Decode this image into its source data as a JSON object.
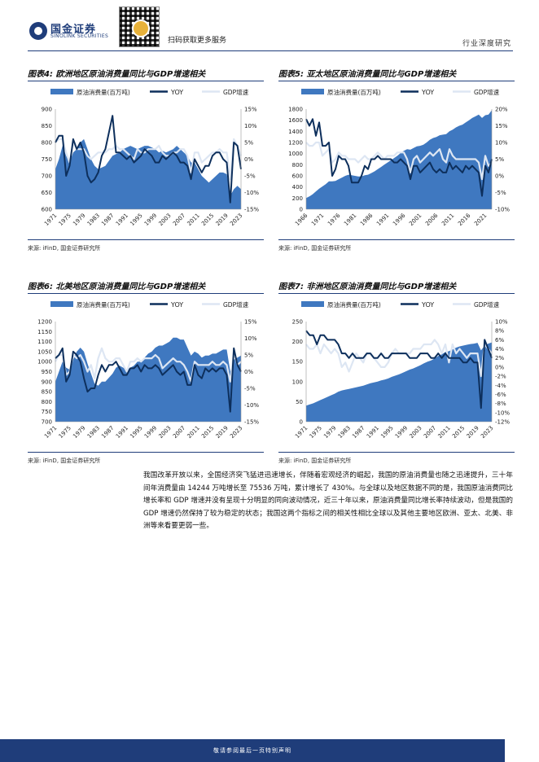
{
  "header": {
    "logo_cn": "国金证券",
    "logo_en": "SINOLINK SECURITIES",
    "scan_text": "扫码获取更多服务",
    "report_type": "行业深度研究"
  },
  "colors": {
    "area": "#3f78c0",
    "yoy": "#0d2f5c",
    "gdp": "#dde6f3",
    "brand": "#1f3d7a"
  },
  "legend": {
    "area": "原油消费量(百万吨)",
    "yoy": "YOY",
    "gdp": "GDP增速"
  },
  "figures": [
    {
      "title": "图表4: 欧洲地区原油消费量同比与GDP增速相关",
      "source": "来源: iFinD, 国金证券研究所",
      "chart_data": {
        "type": "area",
        "x_ticks": [
          "1971",
          "1975",
          "1979",
          "1983",
          "1987",
          "1991",
          "1995",
          "1999",
          "2003",
          "2007",
          "2011",
          "2015",
          "2019",
          "2023"
        ],
        "years": [
          1971,
          1972,
          1973,
          1974,
          1975,
          1976,
          1977,
          1978,
          1979,
          1980,
          1981,
          1982,
          1983,
          1984,
          1985,
          1986,
          1987,
          1988,
          1989,
          1990,
          1991,
          1992,
          1993,
          1994,
          1995,
          1996,
          1997,
          1998,
          1999,
          2000,
          2001,
          2002,
          2003,
          2004,
          2005,
          2006,
          2007,
          2008,
          2009,
          2010,
          2011,
          2012,
          2013,
          2014,
          2015,
          2016,
          2017,
          2018,
          2019,
          2020,
          2021,
          2022,
          2023
        ],
        "y_left": {
          "min": 600,
          "max": 900,
          "ticks": [
            "900",
            "850",
            "800",
            "750",
            "700",
            "650",
            "600"
          ]
        },
        "y_right": {
          "min": -15,
          "max": 15,
          "ticks": [
            "15%",
            "10%",
            "5%",
            "0%",
            "-5%",
            "-10%",
            "-15%"
          ]
        },
        "consumption": [
          720,
          750,
          790,
          760,
          740,
          770,
          780,
          800,
          810,
          780,
          750,
          730,
          720,
          725,
          730,
          745,
          760,
          765,
          770,
          780,
          785,
          790,
          785,
          780,
          785,
          790,
          790,
          785,
          780,
          770,
          775,
          770,
          775,
          780,
          790,
          780,
          770,
          760,
          740,
          740,
          720,
          700,
          690,
          680,
          690,
          700,
          710,
          710,
          705,
          640,
          660,
          670,
          660
        ],
        "yoy": [
          5,
          7,
          7,
          -5,
          -2,
          6,
          3,
          5,
          2,
          -5,
          -7,
          -6,
          -4,
          1,
          3,
          8,
          13,
          2,
          2,
          1,
          0,
          1,
          -1,
          0,
          1,
          3,
          2,
          1,
          -1,
          -1,
          1,
          0,
          1,
          2,
          1,
          -1,
          -1,
          -2,
          -6,
          0,
          -2,
          -4,
          -2,
          -2,
          1,
          2,
          2,
          0,
          -1,
          -13,
          5,
          4,
          -3
        ],
        "gdp": [
          5,
          6,
          6,
          2,
          -1,
          5,
          3,
          3,
          3,
          1,
          0,
          1,
          2,
          2,
          2,
          3,
          3,
          4,
          3,
          3,
          2,
          1,
          0,
          3,
          2,
          2,
          3,
          3,
          3,
          4,
          2,
          1,
          1,
          2,
          2,
          3,
          3,
          1,
          -4,
          2,
          2,
          -1,
          0,
          1,
          2,
          2,
          3,
          2,
          2,
          -6,
          6,
          4,
          1
        ]
      }
    },
    {
      "title": "图表5: 亚太地区原油消费量同比与GDP增速相关",
      "source": "来源: iFinD, 国金证券研究所",
      "chart_data": {
        "type": "area",
        "x_ticks": [
          "1966",
          "1971",
          "1976",
          "1981",
          "1986",
          "1991",
          "1996",
          "2001",
          "2006",
          "2011",
          "2016",
          "2021"
        ],
        "years": [
          1966,
          1967,
          1968,
          1969,
          1970,
          1971,
          1972,
          1973,
          1974,
          1975,
          1976,
          1977,
          1978,
          1979,
          1980,
          1981,
          1982,
          1983,
          1984,
          1985,
          1986,
          1987,
          1988,
          1989,
          1990,
          1991,
          1992,
          1993,
          1994,
          1995,
          1996,
          1997,
          1998,
          1999,
          2000,
          2001,
          2002,
          2003,
          2004,
          2005,
          2006,
          2007,
          2008,
          2009,
          2010,
          2011,
          2012,
          2013,
          2014,
          2015,
          2016,
          2017,
          2018,
          2019,
          2020,
          2021,
          2022,
          2023
        ],
        "y_left": {
          "min": 0,
          "max": 1800,
          "ticks": [
            "1800",
            "1600",
            "1400",
            "1200",
            "1000",
            "800",
            "600",
            "400",
            "200",
            "0"
          ]
        },
        "y_right": {
          "min": -10,
          "max": 20,
          "ticks": [
            "20%",
            "15%",
            "10%",
            "5%",
            "0%",
            "-5%",
            "-10%"
          ]
        },
        "consumption": [
          200,
          230,
          270,
          320,
          370,
          410,
          450,
          500,
          500,
          510,
          540,
          570,
          600,
          620,
          610,
          600,
          590,
          590,
          610,
          620,
          650,
          680,
          720,
          760,
          800,
          840,
          880,
          920,
          960,
          1010,
          1050,
          1080,
          1070,
          1100,
          1130,
          1140,
          1160,
          1200,
          1250,
          1280,
          1300,
          1330,
          1340,
          1350,
          1400,
          1430,
          1470,
          1500,
          1520,
          1560,
          1600,
          1640,
          1670,
          1700,
          1640,
          1690,
          1700,
          1780
        ],
        "yoy": [
          17,
          15,
          17,
          12,
          16,
          9,
          9,
          10,
          0,
          2,
          6,
          5,
          5,
          3,
          -2,
          -2,
          -2,
          0,
          3,
          2,
          5,
          5,
          6,
          5,
          5,
          5,
          5,
          4,
          4,
          5,
          4,
          3,
          -1,
          3,
          3,
          1,
          2,
          3,
          4,
          2,
          1,
          2,
          1,
          1,
          4,
          2,
          3,
          2,
          1,
          3,
          2,
          3,
          2,
          1,
          -6,
          3,
          1,
          5
        ],
        "gdp": [
          10,
          9,
          9,
          10,
          10,
          6,
          7,
          8,
          4,
          5,
          7,
          6,
          6,
          5,
          5,
          5,
          4,
          5,
          6,
          5,
          5,
          6,
          7,
          6,
          5,
          6,
          6,
          6,
          7,
          7,
          7,
          5,
          1,
          5,
          6,
          4,
          5,
          6,
          7,
          6,
          7,
          8,
          5,
          4,
          8,
          6,
          5,
          5,
          5,
          5,
          5,
          5,
          5,
          4,
          -1,
          6,
          3,
          4
        ]
      }
    },
    {
      "title": "图表6: 北美地区原油消费量同比与GDP增速相关",
      "source": "来源: iFinD, 国金证券研究所",
      "chart_data": {
        "type": "area",
        "x_ticks": [
          "1971",
          "1975",
          "1979",
          "1983",
          "1987",
          "1991",
          "1995",
          "1999",
          "2003",
          "2007",
          "2011",
          "2015",
          "2019",
          "2023"
        ],
        "years": [
          1971,
          1972,
          1973,
          1974,
          1975,
          1976,
          1977,
          1978,
          1979,
          1980,
          1981,
          1982,
          1983,
          1984,
          1985,
          1986,
          1987,
          1988,
          1989,
          1990,
          1991,
          1992,
          1993,
          1994,
          1995,
          1996,
          1997,
          1998,
          1999,
          2000,
          2001,
          2002,
          2003,
          2004,
          2005,
          2006,
          2007,
          2008,
          2009,
          2010,
          2011,
          2012,
          2013,
          2014,
          2015,
          2016,
          2017,
          2018,
          2019,
          2020,
          2021,
          2022,
          2023
        ],
        "y_left": {
          "min": 700,
          "max": 1200,
          "ticks": [
            "1200",
            "1150",
            "1100",
            "1050",
            "1000",
            "950",
            "900",
            "850",
            "800",
            "750",
            "700"
          ]
        },
        "y_right": {
          "min": -15,
          "max": 15,
          "ticks": [
            "15%",
            "10%",
            "5%",
            "0%",
            "-5%",
            "-10%",
            "-15%"
          ]
        },
        "consumption": [
          900,
          950,
          1000,
          970,
          960,
          1010,
          1050,
          1070,
          1050,
          990,
          940,
          890,
          880,
          900,
          900,
          920,
          940,
          970,
          980,
          970,
          960,
          970,
          980,
          1000,
          1000,
          1020,
          1040,
          1050,
          1070,
          1080,
          1080,
          1090,
          1100,
          1120,
          1120,
          1110,
          1110,
          1070,
          1030,
          1050,
          1040,
          1020,
          1030,
          1030,
          1040,
          1040,
          1050,
          1060,
          1060,
          950,
          1010,
          1020,
          1030
        ],
        "yoy": [
          4,
          5,
          7,
          -3,
          -1,
          6,
          5,
          3,
          -2,
          -6,
          -5,
          -5,
          -1,
          2,
          0,
          2,
          2,
          3,
          1,
          -1,
          -1,
          1,
          1,
          2,
          0,
          2,
          1,
          1,
          2,
          1,
          -1,
          0,
          1,
          2,
          0,
          -1,
          0,
          -4,
          -4,
          2,
          -1,
          -2,
          1,
          0,
          1,
          0,
          1,
          1,
          -1,
          -12,
          7,
          2,
          0
        ],
        "gdp": [
          3,
          5,
          5,
          -1,
          0,
          5,
          4,
          5,
          3,
          0,
          2,
          -2,
          4,
          7,
          4,
          3,
          3,
          4,
          4,
          2,
          0,
          3,
          3,
          4,
          3,
          4,
          4,
          4,
          5,
          4,
          1,
          2,
          3,
          4,
          3,
          3,
          2,
          0,
          -3,
          3,
          2,
          2,
          2,
          2,
          3,
          2,
          2,
          3,
          2,
          -3,
          6,
          2,
          3
        ]
      }
    },
    {
      "title": "图表7: 非洲地区原油消费量同比与GDP增速相关",
      "source": "来源: iFinD, 国金证券研究所",
      "chart_data": {
        "type": "area",
        "x_ticks": [
          "1971",
          "1975",
          "1979",
          "1983",
          "1987",
          "1991",
          "1995",
          "1999",
          "2003",
          "2007",
          "2011",
          "2015",
          "2019",
          "2023"
        ],
        "years": [
          1971,
          1972,
          1973,
          1974,
          1975,
          1976,
          1977,
          1978,
          1979,
          1980,
          1981,
          1982,
          1983,
          1984,
          1985,
          1986,
          1987,
          1988,
          1989,
          1990,
          1991,
          1992,
          1993,
          1994,
          1995,
          1996,
          1997,
          1998,
          1999,
          2000,
          2001,
          2002,
          2003,
          2004,
          2005,
          2006,
          2007,
          2008,
          2009,
          2010,
          2011,
          2012,
          2013,
          2014,
          2015,
          2016,
          2017,
          2018,
          2019,
          2020,
          2021,
          2022,
          2023
        ],
        "y_left": {
          "min": 0,
          "max": 250,
          "ticks": [
            "250",
            "200",
            "150",
            "100",
            "50",
            "0"
          ]
        },
        "y_right": {
          "min": -12,
          "max": 10,
          "ticks": [
            "10%",
            "8%",
            "6%",
            "4%",
            "2%",
            "0%",
            "-2%",
            "-4%",
            "-6%",
            "-8%",
            "-10%",
            "-12%"
          ]
        },
        "consumption": [
          40,
          43,
          46,
          50,
          54,
          58,
          62,
          66,
          70,
          75,
          78,
          80,
          82,
          84,
          86,
          88,
          90,
          93,
          96,
          98,
          100,
          103,
          105,
          108,
          112,
          115,
          118,
          122,
          126,
          130,
          133,
          137,
          141,
          146,
          150,
          153,
          158,
          164,
          168,
          174,
          176,
          180,
          185,
          188,
          190,
          192,
          194,
          195,
          197,
          178,
          190,
          195,
          198
        ],
        "yoy": [
          8,
          7,
          7,
          5,
          7,
          7,
          6,
          6,
          6,
          5,
          3,
          3,
          2,
          3,
          2,
          2,
          2,
          3,
          3,
          2,
          2,
          3,
          2,
          2,
          3,
          3,
          3,
          3,
          3,
          2,
          2,
          2,
          3,
          3,
          3,
          2,
          2,
          3,
          2,
          3,
          2,
          2,
          2,
          2,
          1,
          1,
          2,
          1,
          1,
          -9,
          6,
          4,
          2
        ],
        "gdp": [
          5,
          4,
          4,
          5,
          3,
          5,
          4,
          3,
          4,
          3,
          0,
          1,
          -1,
          1,
          3,
          2,
          1,
          3,
          3,
          2,
          1,
          0,
          0,
          1,
          3,
          4,
          3,
          3,
          3,
          3,
          4,
          4,
          4,
          5,
          5,
          5,
          6,
          5,
          3,
          5,
          1,
          5,
          3,
          4,
          3,
          2,
          3,
          3,
          3,
          -2,
          5,
          4,
          3
        ]
      }
    }
  ],
  "body_text": "我国改革开放以来，全国经济突飞猛进迅速增长，伴随着宏观经济的崛起，我国的原油消费量也随之迅速提升，三十年间年消费量由 14244 万吨增长至 75536 万吨，累计增长了 430%。与全球以及地区数据不同的是，我国原油消费同比增长率和 GDP 增速并没有呈现十分明显的同向波动情况，近三十年以来，原油消费量同比增长率持续波动，但是我国的 GDP 增速仍然保持了较为稳定的状态；我国这两个指标之间的相关性相比全球以及其他主要地区欧洲、亚太、北美、非洲等来看要更弱一些。",
  "footer": {
    "text": "敬请参阅最后一页特别声明"
  }
}
